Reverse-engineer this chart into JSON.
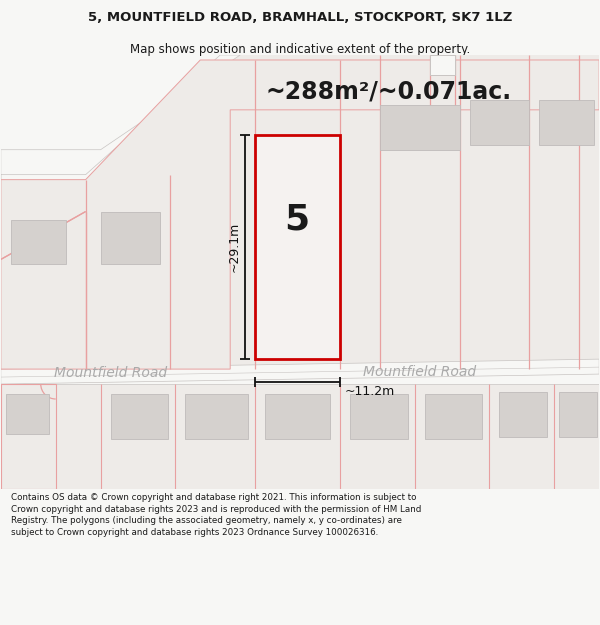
{
  "title_line1": "5, MOUNTFIELD ROAD, BRAMHALL, STOCKPORT, SK7 1LZ",
  "title_line2": "Map shows position and indicative extent of the property.",
  "area_text": "~288m²/~0.071ac.",
  "dim_vertical": "~29.1m",
  "dim_horizontal": "~11.2m",
  "road_label1": "Mountfield Road",
  "road_label2": "Mountfield Road",
  "house_number": "5",
  "footer_text": "Contains OS data © Crown copyright and database right 2021. This information is subject to Crown copyright and database rights 2023 and is reproduced with the permission of HM Land Registry. The polygons (including the associated geometry, namely x, y co-ordinates) are subject to Crown copyright and database rights 2023 Ordnance Survey 100026316.",
  "bg_color": "#f7f7f5",
  "map_bg": "#eeebe8",
  "highlight_color": "#cc0000",
  "boundary_color": "#e8a0a0",
  "building_color": "#d5d1ce",
  "building_outline": "#bfbbba",
  "road_color": "#f7f7f5",
  "dim_line_color": "#111111",
  "text_color": "#1a1a1a",
  "gray_outline": "#c8c4c2"
}
